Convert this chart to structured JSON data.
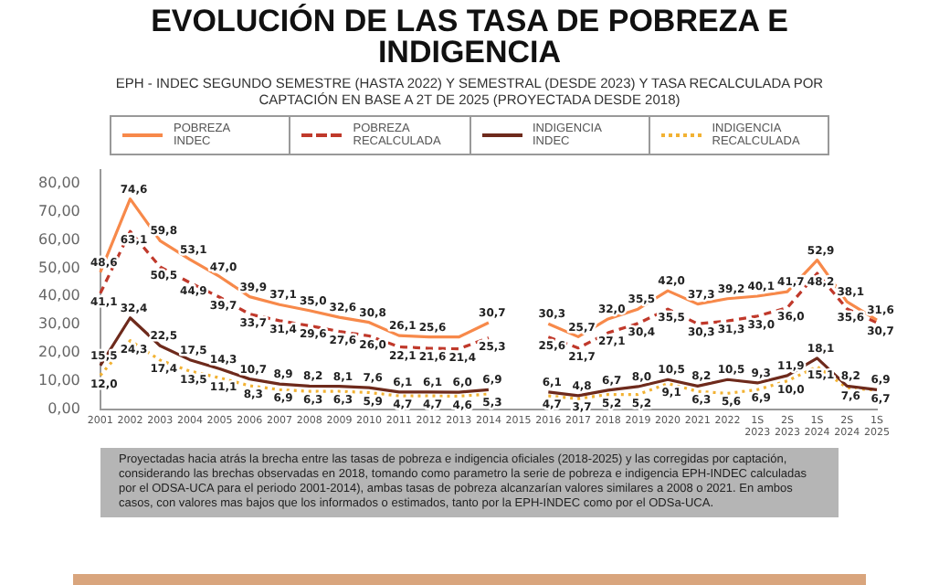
{
  "chart_data": {
    "type": "line",
    "title": "EVOLUCIÓN DE LAS TASA DE POBREZA E INDIGENCIA",
    "subtitle": "EPH - INDEC SEGUNDO SEMESTRE (HASTA 2022) Y SEMESTRAL (DESDE 2023) Y TASA RECALCULADA POR CAPTACIÓN EN BASE A 2T DE 2025 (PROYECTADA DESDE 2018)",
    "categories": [
      "2001",
      "2002",
      "2003",
      "2004",
      "2005",
      "2006",
      "2007",
      "2008",
      "2009",
      "2010",
      "2011",
      "2012",
      "2013",
      "2014",
      "2015",
      "2016",
      "2017",
      "2018",
      "2019",
      "2020",
      "2021",
      "2022",
      "1S 2023",
      "2S 2023",
      "1S 2024",
      "2S 2024",
      "1S 2025"
    ],
    "series": [
      {
        "name": "POBREZA INDEC",
        "color": "#f7894a",
        "line_style": "solid",
        "values": [
          48.6,
          74.6,
          59.8,
          53.1,
          47.0,
          39.9,
          37.1,
          35.0,
          32.6,
          30.8,
          26.1,
          25.6,
          25.6,
          30.7,
          null,
          30.3,
          25.7,
          32.0,
          35.5,
          42.0,
          37.3,
          39.2,
          40.1,
          41.7,
          52.9,
          38.1,
          31.6
        ],
        "value_labels": [
          "48,6",
          "74,6",
          "59,8",
          "53,1",
          "47,0",
          "39,9",
          "37,1",
          "35,0",
          "32,6",
          "30,8",
          "26,1",
          "25,6",
          null,
          "30,7",
          null,
          "30,3",
          "25,7",
          "32,0",
          "35,5",
          "42,0",
          "37,3",
          "39,2",
          "40,1",
          "41,7",
          "52,9",
          "38,1",
          "31,6"
        ]
      },
      {
        "name": "POBREZA RECALCULADA",
        "color": "#c0392b",
        "line_style": "dashed",
        "values": [
          41.1,
          63.1,
          50.5,
          44.9,
          39.7,
          33.7,
          31.4,
          29.6,
          27.6,
          26.0,
          22.1,
          21.6,
          21.4,
          25.3,
          null,
          25.6,
          21.7,
          27.1,
          30.4,
          35.5,
          30.3,
          31.3,
          33.0,
          36.0,
          48.2,
          35.6,
          30.7
        ],
        "value_labels": [
          "41,1",
          "63,1",
          "50,5",
          "44,9",
          "39,7",
          "33,7",
          "31,4",
          "29,6",
          "27,6",
          "26,0",
          "22,1",
          "21,6",
          "21,4",
          "25,3",
          null,
          "25,6",
          "21,7",
          "27,1",
          "30,4",
          "35,5",
          "30,3",
          "31,3",
          "33,0",
          "36,0",
          "48,2",
          "35,6",
          "30,7"
        ]
      },
      {
        "name": "INDIGENCIA INDEC",
        "color": "#6e2a1c",
        "line_style": "solid",
        "values": [
          15.5,
          32.4,
          22.5,
          17.5,
          14.3,
          10.7,
          8.9,
          8.2,
          8.1,
          7.6,
          6.1,
          6.1,
          6.0,
          6.9,
          null,
          6.1,
          4.8,
          6.7,
          8.0,
          10.5,
          8.2,
          10.5,
          9.3,
          11.9,
          18.1,
          8.2,
          6.9
        ],
        "value_labels": [
          "15,5",
          "32,4",
          "22,5",
          "17,5",
          "14,3",
          "10,7",
          "8,9",
          "8,2",
          "8,1",
          "7,6",
          "6,1",
          "6,1",
          "6,0",
          "6,9",
          null,
          "6,1",
          "4,8",
          "6,7",
          "8,0",
          "10,5",
          "8,2",
          "10,5",
          "9,3",
          "11,9",
          "18,1",
          "8,2",
          "6,9"
        ]
      },
      {
        "name": "INDIGENCIA RECALCULADA",
        "color": "#f2b233",
        "line_style": "dotted",
        "values": [
          12.0,
          24.3,
          17.4,
          13.5,
          11.1,
          8.3,
          6.9,
          6.3,
          6.3,
          5.9,
          4.7,
          4.7,
          4.6,
          5.3,
          null,
          4.7,
          3.7,
          5.2,
          5.2,
          9.1,
          6.3,
          5.6,
          6.9,
          10.0,
          15.1,
          7.6,
          6.7
        ],
        "value_labels": [
          "12,0",
          "24,3",
          "17,4",
          "13,5",
          "11,1",
          "8,3",
          "6,9",
          "6,3",
          "6,3",
          "5,9",
          "4,7",
          "4,7",
          "4,6",
          "5,3",
          null,
          "4,7",
          "3,7",
          "5,2",
          "5,2",
          "9,1",
          "6,3",
          "5,6",
          "6,9",
          "10,0",
          "15,1",
          "7,6",
          "6,7"
        ]
      }
    ],
    "ylim": [
      0,
      85
    ],
    "yticks": [
      {
        "value": 0,
        "label": "0,00"
      },
      {
        "value": 10,
        "label": "10,00"
      },
      {
        "value": 20,
        "label": "20,00"
      },
      {
        "value": 30,
        "label": "30,00"
      },
      {
        "value": 40,
        "label": "40,00"
      },
      {
        "value": 50,
        "label": "50,00"
      },
      {
        "value": 60,
        "label": "60,00"
      },
      {
        "value": 70,
        "label": "70,00"
      },
      {
        "value": 80,
        "label": "80,00"
      }
    ],
    "grid": false,
    "legend": "top",
    "marker": "none",
    "annotations": [
      "Proyectadas hacia atrás la brecha entre las tasas de pobreza e indigencia oficiales (2018-2025) y las corregidas por captación, considerando las brechas observadas en 2018, tomando como parametro la serie de pobreza e indigencia EPH-INDEC calculadas por el ODSA-UCA para el periodo 2001-2014), ambas tasas de pobreza alcanzarían valores similares a 2008 o 2021. En ambos casos, con valores mas bajos que los informados o estimados, tanto por la EPH-INDEC como por el ODSa-UCA."
    ]
  }
}
